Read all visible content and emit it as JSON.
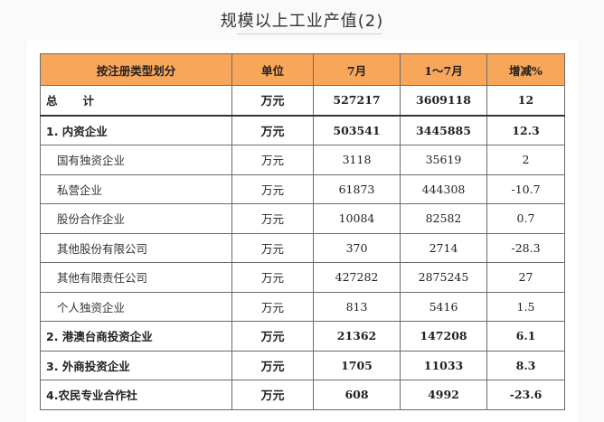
{
  "title": "规模以上工业产值(2)",
  "table": {
    "headers": [
      "按注册类型划分",
      "单位",
      "7月",
      "1～7月",
      "增减%"
    ],
    "rows": [
      {
        "name": "总计",
        "unit": "万元",
        "july": "527217",
        "jan_jul": "3609118",
        "change": "12",
        "style": "total"
      },
      {
        "name": "1. 内资企业",
        "unit": "万元",
        "july": "503541",
        "jan_jul": "3445885",
        "change": "12.3",
        "style": "bold"
      },
      {
        "name": "国有独资企业",
        "unit": "万元",
        "july": "3118",
        "jan_jul": "35619",
        "change": "2",
        "style": "sub"
      },
      {
        "name": "私营企业",
        "unit": "万元",
        "july": "61873",
        "jan_jul": "444308",
        "change": "-10.7",
        "style": "sub"
      },
      {
        "name": "股份合作企业",
        "unit": "万元",
        "july": "10084",
        "jan_jul": "82582",
        "change": "0.7",
        "style": "sub"
      },
      {
        "name": "其他股份有限公司",
        "unit": "万元",
        "july": "370",
        "jan_jul": "2714",
        "change": "-28.3",
        "style": "sub"
      },
      {
        "name": "其他有限责任公司",
        "unit": "万元",
        "july": "427282",
        "jan_jul": "2875245",
        "change": "27",
        "style": "sub"
      },
      {
        "name": "个人独资企业",
        "unit": "万元",
        "july": "813",
        "jan_jul": "5416",
        "change": "1.5",
        "style": "sub"
      },
      {
        "name": "2. 港澳台商投资企业",
        "unit": "万元",
        "july": "21362",
        "jan_jul": "147208",
        "change": "6.1",
        "style": "bold"
      },
      {
        "name": "3. 外商投资企业",
        "unit": "万元",
        "july": "1705",
        "jan_jul": "11033",
        "change": "8.3",
        "style": "bold"
      },
      {
        "name": "4.农民专业合作社",
        "unit": "万元",
        "july": "608",
        "jan_jul": "4992",
        "change": "-23.6",
        "style": "bold"
      }
    ]
  },
  "colors": {
    "header_bg": "#f7a65a"
  }
}
